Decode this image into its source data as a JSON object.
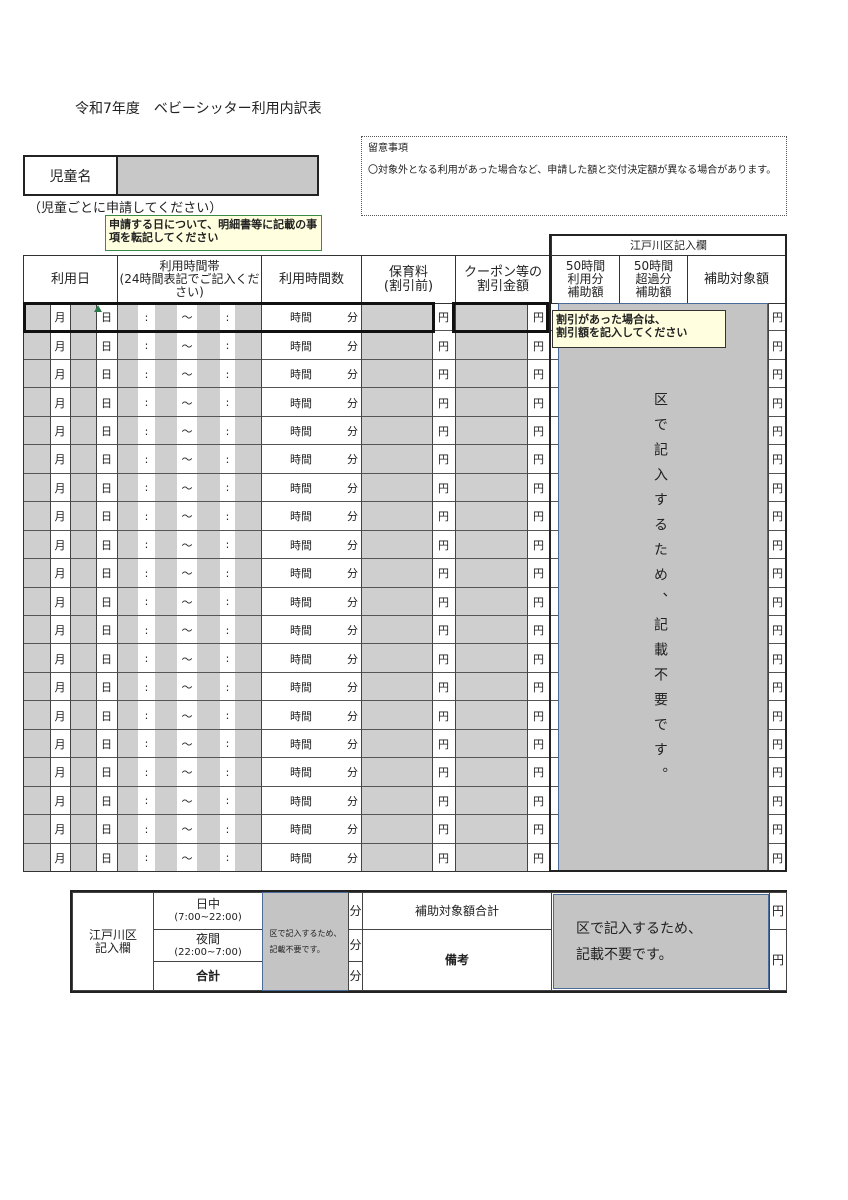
{
  "title": "令和7年度　ベビーシッター利用内訳表",
  "notes": {
    "heading": "留意事項",
    "body": "〇対象外となる利用があった場合など、申請した額と交付決定額が異なる場合があります。"
  },
  "child": {
    "label": "児童名",
    "value": "",
    "note": "（児童ごとに申請してください）"
  },
  "table": {
    "headers": {
      "date": "利用日",
      "band": "利用時間帯\n(24時間表記でご記入ください)",
      "hours": "利用時間数",
      "fee": "保育料\n(割引前)",
      "coupon": "クーポン等の\n割引金額",
      "ward_group": "江戸川区記入欄",
      "sub50": "50時間\n利用分\n補助額",
      "over50": "50時間\n超過分\n補助額",
      "target": "補助対象額"
    },
    "row_count": 20,
    "row_labels": {
      "month": "月",
      "day": "日",
      "colon": ":",
      "tilde": "～",
      "hour": "時間",
      "minute": "分",
      "yen": "円"
    },
    "ward_note": "区で記入するため、記載不要です。"
  },
  "tooltips": {
    "date": "申請する日について、明細書等に記載の事項を転記してください",
    "coupon": "割引があった場合は、\n割引額を記入してください"
  },
  "summary": {
    "label": "江戸川区\n記入欄",
    "day": "日中",
    "day_range": "(7:00~22:00)",
    "night": "夜間",
    "night_range": "(22:00~7:00)",
    "total": "合計",
    "gray_note": "区で記入するため、\n記載不要です。",
    "minute": "分",
    "yen": "円",
    "target_total": "補助対象額合計",
    "remarks": "備考",
    "right_note": "区で記入するため、\n記載不要です。"
  },
  "colors": {
    "input_gray": "#cfcfcf",
    "ward_gray": "#c4c4c4",
    "tooltip_bg": "#ffffe0",
    "tooltip_border": "#3a8a4a"
  }
}
